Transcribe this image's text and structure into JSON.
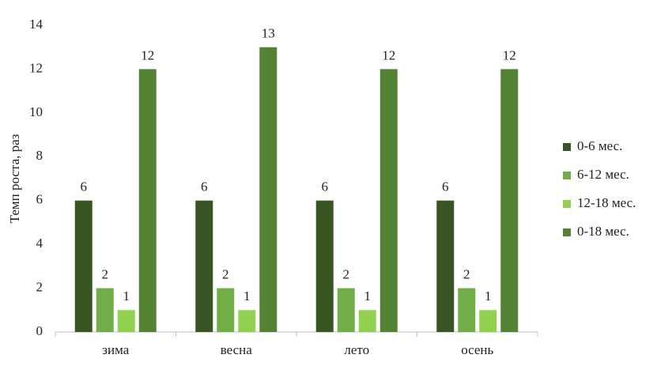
{
  "chart_data": {
    "type": "bar",
    "y_label": "Темп роста, раз",
    "categories": [
      "зима",
      "весна",
      "лето",
      "осень"
    ],
    "series": [
      {
        "name": "0-6 мес.",
        "color": "#375623",
        "values": [
          6,
          6,
          6,
          6
        ]
      },
      {
        "name": "6-12 мес.",
        "color": "#70ad47",
        "values": [
          2,
          2,
          2,
          2
        ]
      },
      {
        "name": "12-18 мес.",
        "color": "#92d050",
        "values": [
          1,
          1,
          1,
          1
        ]
      },
      {
        "name": "0-18 мес.",
        "color": "#548235",
        "values": [
          12,
          13,
          12,
          12
        ]
      }
    ],
    "ylim": [
      0,
      14
    ],
    "yticks": [
      0,
      2,
      4,
      6,
      8,
      10,
      12,
      14
    ],
    "grid": false,
    "legend": "right"
  }
}
